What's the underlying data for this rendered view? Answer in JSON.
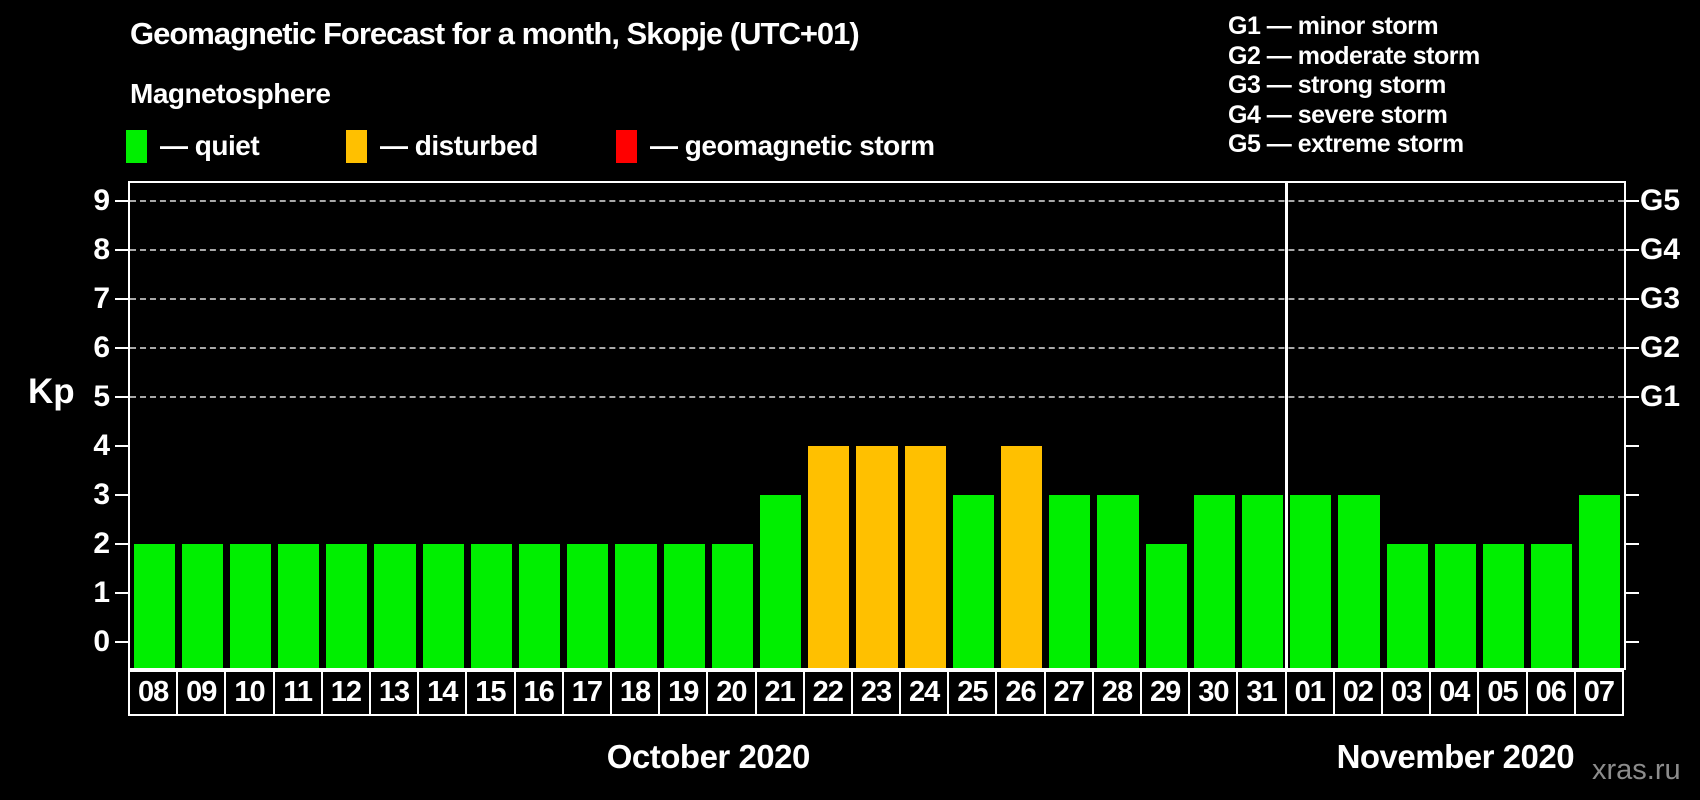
{
  "header": {
    "title": "Geomagnetic Forecast for a month, Skopje (UTC+01)",
    "subtitle": "Magnetosphere",
    "legend": [
      {
        "name": "quiet",
        "label": "— quiet",
        "color": "#00ef00"
      },
      {
        "name": "disturbed",
        "label": "— disturbed",
        "color": "#ffc000"
      },
      {
        "name": "storm",
        "label": "— geomagnetic storm",
        "color": "#ff0000"
      }
    ]
  },
  "g_legend": {
    "lines": [
      "G1 — minor storm",
      "G2 — moderate storm",
      "G3 — strong storm",
      "G4 — severe storm",
      "G5 — extreme storm"
    ]
  },
  "watermark": "xras.ru",
  "chart_data": {
    "type": "bar",
    "title": "Geomagnetic Forecast for a month, Skopje (UTC+01)",
    "ylabel": "Kp",
    "ylim": [
      0,
      9
    ],
    "yticks": [
      0,
      1,
      2,
      3,
      4,
      5,
      6,
      7,
      8,
      9
    ],
    "gridlines_kp": [
      5,
      6,
      7,
      8,
      9
    ],
    "grid": "dashed-horizontal-at-storm-levels",
    "legend_position": "top-left",
    "right_axis_labels": [
      {
        "kp": 5,
        "label": "G1"
      },
      {
        "kp": 6,
        "label": "G2"
      },
      {
        "kp": 7,
        "label": "G3"
      },
      {
        "kp": 8,
        "label": "G4"
      },
      {
        "kp": 9,
        "label": "G5"
      }
    ],
    "colors": {
      "quiet": "#00ef00",
      "disturbed": "#ffc000",
      "storm": "#ff0000"
    },
    "months": [
      {
        "label": "October 2020",
        "days": [
          {
            "day": "08",
            "kp": 2,
            "status": "quiet"
          },
          {
            "day": "09",
            "kp": 2,
            "status": "quiet"
          },
          {
            "day": "10",
            "kp": 2,
            "status": "quiet"
          },
          {
            "day": "11",
            "kp": 2,
            "status": "quiet"
          },
          {
            "day": "12",
            "kp": 2,
            "status": "quiet"
          },
          {
            "day": "13",
            "kp": 2,
            "status": "quiet"
          },
          {
            "day": "14",
            "kp": 2,
            "status": "quiet"
          },
          {
            "day": "15",
            "kp": 2,
            "status": "quiet"
          },
          {
            "day": "16",
            "kp": 2,
            "status": "quiet"
          },
          {
            "day": "17",
            "kp": 2,
            "status": "quiet"
          },
          {
            "day": "18",
            "kp": 2,
            "status": "quiet"
          },
          {
            "day": "19",
            "kp": 2,
            "status": "quiet"
          },
          {
            "day": "20",
            "kp": 2,
            "status": "quiet"
          },
          {
            "day": "21",
            "kp": 3,
            "status": "quiet"
          },
          {
            "day": "22",
            "kp": 4,
            "status": "disturbed"
          },
          {
            "day": "23",
            "kp": 4,
            "status": "disturbed"
          },
          {
            "day": "24",
            "kp": 4,
            "status": "disturbed"
          },
          {
            "day": "25",
            "kp": 3,
            "status": "quiet"
          },
          {
            "day": "26",
            "kp": 4,
            "status": "disturbed"
          },
          {
            "day": "27",
            "kp": 3,
            "status": "quiet"
          },
          {
            "day": "28",
            "kp": 3,
            "status": "quiet"
          },
          {
            "day": "29",
            "kp": 2,
            "status": "quiet"
          },
          {
            "day": "30",
            "kp": 3,
            "status": "quiet"
          },
          {
            "day": "31",
            "kp": 3,
            "status": "quiet"
          }
        ]
      },
      {
        "label": "November 2020",
        "days": [
          {
            "day": "01",
            "kp": 3,
            "status": "quiet"
          },
          {
            "day": "02",
            "kp": 3,
            "status": "quiet"
          },
          {
            "day": "03",
            "kp": 2,
            "status": "quiet"
          },
          {
            "day": "04",
            "kp": 2,
            "status": "quiet"
          },
          {
            "day": "05",
            "kp": 2,
            "status": "quiet"
          },
          {
            "day": "06",
            "kp": 2,
            "status": "quiet"
          },
          {
            "day": "07",
            "kp": 3,
            "status": "quiet"
          }
        ]
      }
    ]
  }
}
